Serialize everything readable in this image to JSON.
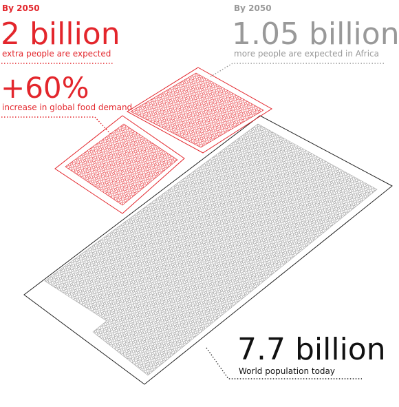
{
  "left": {
    "label": "By 2050",
    "headline": "2 billion",
    "caption": "extra people are expected",
    "increase": "+60%",
    "increase_caption": "increase in global food demand"
  },
  "right": {
    "label": "By 2050",
    "headline": "1.05 billion",
    "caption": "more people are expected in Africa"
  },
  "bottom": {
    "headline": "7.7 billion",
    "caption": "World population today"
  }
}
